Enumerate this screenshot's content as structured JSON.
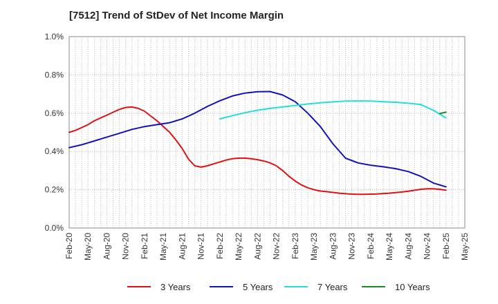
{
  "chart_data": {
    "type": "line",
    "title": "[7512]  Trend of StDev of Net Income Margin",
    "xlabel": "",
    "ylabel": "",
    "x_ticks": [
      "Feb-20",
      "May-20",
      "Aug-20",
      "Nov-20",
      "Feb-21",
      "May-21",
      "Aug-21",
      "Nov-21",
      "Feb-22",
      "May-22",
      "Aug-22",
      "Nov-22",
      "Feb-23",
      "May-23",
      "Aug-23",
      "Nov-23",
      "Feb-24",
      "May-24",
      "Aug-24",
      "Nov-24",
      "Feb-25",
      "May-25"
    ],
    "y_ticks": [
      "0.0%",
      "0.2%",
      "0.4%",
      "0.6%",
      "0.8%",
      "1.0%"
    ],
    "ylim": [
      0,
      1.0
    ],
    "grid": true,
    "legend_position": "bottom",
    "series": [
      {
        "name": "3 Years",
        "color": "#dd1111",
        "x": [
          "Feb-20",
          "Mar-20",
          "Apr-20",
          "May-20",
          "Jun-20",
          "Jul-20",
          "Aug-20",
          "Sep-20",
          "Oct-20",
          "Nov-20",
          "Dec-20",
          "Jan-21",
          "Feb-21",
          "Mar-21",
          "Apr-21",
          "May-21",
          "Jun-21",
          "Jul-21",
          "Aug-21",
          "Sep-21",
          "Oct-21",
          "Nov-21",
          "Dec-21",
          "Jan-22",
          "Feb-22",
          "Mar-22",
          "Apr-22",
          "May-22",
          "Jun-22",
          "Jul-22",
          "Aug-22",
          "Sep-22",
          "Oct-22",
          "Nov-22",
          "Dec-22",
          "Jan-23",
          "Feb-23",
          "Mar-23",
          "Apr-23",
          "May-23",
          "Jun-23",
          "Jul-23",
          "Aug-23",
          "Sep-23",
          "Oct-23",
          "Nov-23",
          "Dec-23",
          "Jan-24",
          "Feb-24",
          "Mar-24",
          "Apr-24",
          "May-24",
          "Jun-24",
          "Jul-24",
          "Aug-24",
          "Sep-24",
          "Oct-24",
          "Nov-24",
          "Dec-24",
          "Jan-25",
          "Feb-25"
        ],
        "values": [
          0.5,
          0.51,
          0.525,
          0.54,
          0.56,
          0.575,
          0.59,
          0.605,
          0.62,
          0.63,
          0.632,
          0.625,
          0.61,
          0.585,
          0.56,
          0.53,
          0.5,
          0.46,
          0.415,
          0.36,
          0.325,
          0.318,
          0.325,
          0.335,
          0.345,
          0.355,
          0.362,
          0.365,
          0.365,
          0.362,
          0.357,
          0.35,
          0.34,
          0.325,
          0.3,
          0.27,
          0.245,
          0.225,
          0.21,
          0.2,
          0.193,
          0.19,
          0.186,
          0.182,
          0.179,
          0.177,
          0.176,
          0.176,
          0.177,
          0.178,
          0.18,
          0.182,
          0.185,
          0.188,
          0.192,
          0.197,
          0.202,
          0.205,
          0.205,
          0.202,
          0.197
        ]
      },
      {
        "name": "5 Years",
        "color": "#1111bb",
        "x": [
          "Feb-20",
          "Apr-20",
          "Jun-20",
          "Aug-20",
          "Oct-20",
          "Dec-20",
          "Feb-21",
          "Apr-21",
          "Jun-21",
          "Aug-21",
          "Oct-21",
          "Dec-21",
          "Feb-22",
          "Apr-22",
          "Jun-22",
          "Aug-22",
          "Oct-22",
          "Dec-22",
          "Feb-23",
          "Apr-23",
          "Jun-23",
          "Aug-23",
          "Oct-23",
          "Dec-23",
          "Feb-24",
          "Apr-24",
          "Jun-24",
          "Aug-24",
          "Oct-24",
          "Dec-24",
          "Feb-25"
        ],
        "values": [
          0.42,
          0.435,
          0.455,
          0.475,
          0.495,
          0.515,
          0.53,
          0.54,
          0.55,
          0.57,
          0.6,
          0.635,
          0.665,
          0.69,
          0.705,
          0.712,
          0.713,
          0.695,
          0.66,
          0.6,
          0.53,
          0.44,
          0.365,
          0.34,
          0.328,
          0.32,
          0.31,
          0.295,
          0.27,
          0.235,
          0.215
        ]
      },
      {
        "name": "7 Years",
        "color": "#22dddd",
        "x": [
          "Feb-22",
          "Apr-22",
          "Jun-22",
          "Aug-22",
          "Oct-22",
          "Dec-22",
          "Feb-23",
          "Apr-23",
          "Jun-23",
          "Aug-23",
          "Oct-23",
          "Dec-23",
          "Feb-24",
          "Apr-24",
          "Jun-24",
          "Aug-24",
          "Oct-24",
          "Dec-24",
          "Feb-25"
        ],
        "values": [
          0.57,
          0.587,
          0.602,
          0.615,
          0.625,
          0.633,
          0.64,
          0.648,
          0.654,
          0.659,
          0.663,
          0.664,
          0.663,
          0.66,
          0.657,
          0.652,
          0.645,
          0.615,
          0.575
        ]
      },
      {
        "name": "10 Years",
        "color": "#228822",
        "x": [
          "Jan-25",
          "Feb-25"
        ],
        "values": [
          0.598,
          0.605
        ]
      }
    ]
  }
}
